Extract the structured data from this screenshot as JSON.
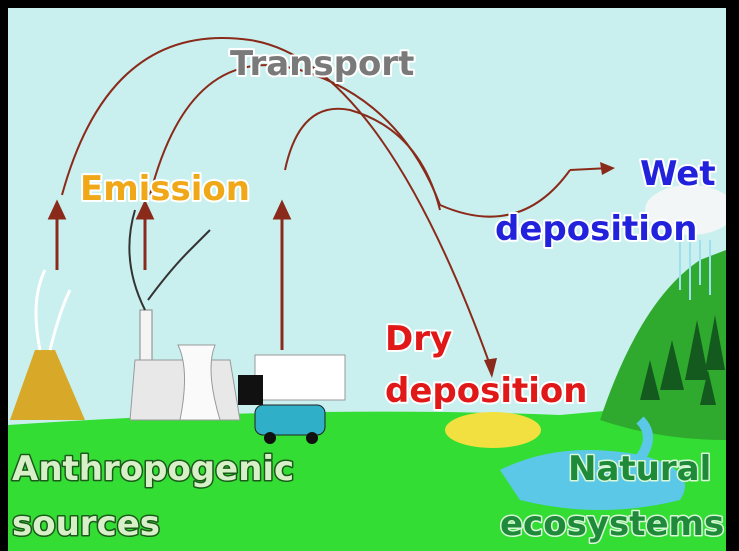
{
  "labels": {
    "transport": "Transport",
    "emission": "Emission",
    "wet_deposition": [
      "Wet",
      "deposition"
    ],
    "dry_deposition": [
      "Dry",
      "deposition"
    ],
    "anthropogenic_sources": [
      "Anthropogenic",
      "sources"
    ],
    "natural_ecosystems": [
      "Natural",
      "ecosystems"
    ]
  }
}
